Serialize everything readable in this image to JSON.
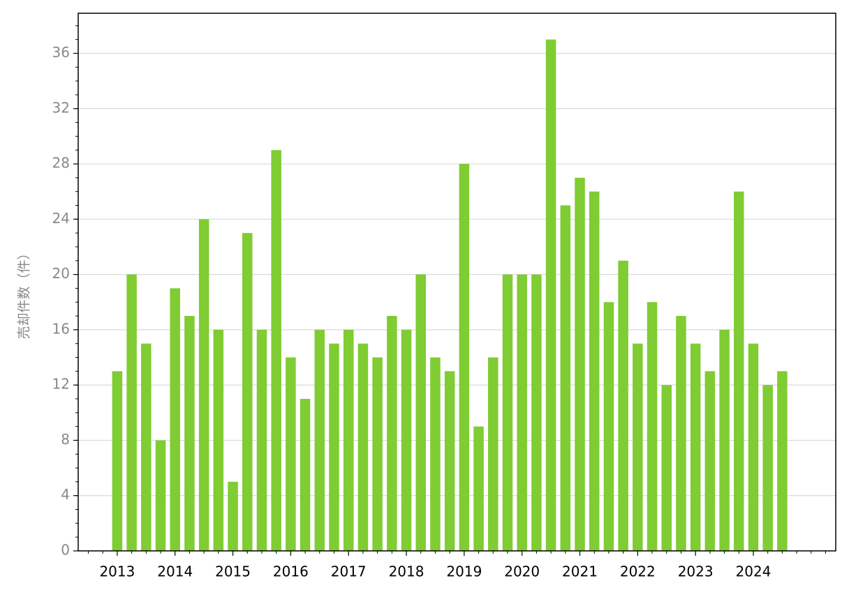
{
  "chart_data": {
    "type": "bar",
    "y_label": "売却件数（件）",
    "categories": [
      "2013",
      null,
      null,
      null,
      "2014",
      null,
      null,
      null,
      "2015",
      null,
      null,
      null,
      "2016",
      null,
      null,
      null,
      "2017",
      null,
      null,
      null,
      "2018",
      null,
      null,
      null,
      "2019",
      null,
      null,
      null,
      "2020",
      null,
      null,
      null,
      "2021",
      null,
      null,
      null,
      "2022",
      null,
      null,
      null,
      "2023",
      null,
      null,
      null,
      "2024",
      null,
      null
    ],
    "values": [
      13,
      20,
      15,
      8,
      19,
      17,
      24,
      16,
      5,
      23,
      16,
      29,
      14,
      11,
      16,
      15,
      16,
      15,
      14,
      17,
      16,
      20,
      14,
      13,
      28,
      9,
      14,
      20,
      20,
      20,
      37,
      25,
      27,
      26,
      18,
      21,
      15,
      18,
      12,
      17,
      15,
      13,
      16,
      26,
      15,
      12,
      13
    ],
    "color": "#7fcc33",
    "ylim": [
      0,
      38.9
    ],
    "yticks": [
      0,
      4,
      8,
      12,
      16,
      20,
      24,
      28,
      32,
      36
    ],
    "grid": true
  }
}
